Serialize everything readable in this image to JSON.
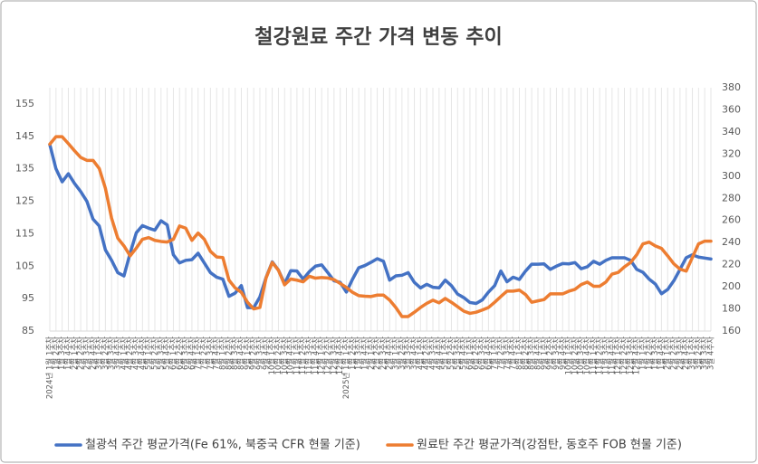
{
  "chart_data": {
    "type": "line",
    "title": "철강원료 주간 가격 변동 추이",
    "categories": [
      "2024년 1월 1주차",
      "1월 2주차",
      "1월 3주차",
      "1월 4주차",
      "2월 1주차",
      "2월 2주차",
      "2월 3주차",
      "2월 4주차",
      "3월 1주차",
      "3월 2주차",
      "3월 3주차",
      "3월 4주차",
      "4월 1주차",
      "4월 2주차",
      "4월 3주차",
      "4월 4주차",
      "5월 1주차",
      "5월 2주차",
      "5월 3주차",
      "5월 4주차",
      "6월 1주차",
      "6월 2주차",
      "6월 3주차",
      "6월 4주차",
      "7월 1주차",
      "7월 2주차",
      "7월 3주차",
      "7월 4주차",
      "8월 1주차",
      "8월 2주차",
      "8월 3주차",
      "8월 4주차",
      "9월 1주차",
      "9월 2주차",
      "9월 3주차",
      "9월 4주차",
      "10월 1주차",
      "10월 2주차",
      "10월 3주차",
      "10월 4주차",
      "11월 1주차",
      "11월 2주차",
      "11월 3주차",
      "11월 4주차",
      "12월 1주차",
      "12월 2주차",
      "12월 3주차",
      "12월 4주차",
      "2025년 1월 1주차",
      "1월 2주차",
      "1월 3주차",
      "1월 4주차",
      "2월 1주차",
      "2월 2주차",
      "2월 3주차",
      "2월 4주차",
      "3월 1주차",
      "3월 2주차",
      "3월 3주차",
      "3월 4주차",
      "4월 1주차",
      "4월 2주차",
      "4월 3주차",
      "4월 4주차",
      "5월 1주차",
      "5월 2주차",
      "5월 3주차",
      "5월 4주차",
      "6월 1주차",
      "6월 2주차",
      "6월 3주차",
      "6월 4주차",
      "7월 1주차",
      "7월 2주차",
      "7월 3주차",
      "7월 4주차",
      "8월 1주차",
      "8월 2주차",
      "8월 3주차",
      "8월 4주차",
      "9월 1주차",
      "9월 2주차",
      "9월 3주차",
      "9월 4주차",
      "10월 1주차",
      "10월 2주차",
      "10월 3주차",
      "10월 4주차",
      "11월 1주차",
      "11월 2주차",
      "11월 3주차",
      "11월 4주차",
      "12월 1주차",
      "12월 2주차",
      "12월 3주차",
      "12월 4주차",
      "1월 1주차",
      "1월 2주차",
      "1월 3주차",
      "1월 4주차",
      "2월 1주차",
      "2월 2주차",
      "2월 3주차",
      "2월 4주차",
      "3월 1주차",
      "3월 2주차",
      "3월 3주차",
      "3월 4주차"
    ],
    "series": [
      {
        "name": "철광석 주간 평균가격(Fe 61%, 북중국 CFR 현물 기준)",
        "color": "#4472c4",
        "axis": "y",
        "values": [
          142.5,
          135,
          131,
          133.5,
          130.5,
          128,
          125,
          119.5,
          117.4,
          110,
          106.8,
          103,
          102,
          109,
          115.3,
          117.5,
          116.7,
          116.1,
          119,
          117.7,
          108.5,
          106,
          106.8,
          107,
          109,
          106,
          103,
          101.6,
          101,
          95.7,
          96.7,
          99,
          92.2,
          92.2,
          95.5,
          101.5,
          106.3,
          103.8,
          99.6,
          103.6,
          103.5,
          101,
          103.3,
          105,
          105.4,
          103,
          100.5,
          100,
          97,
          101,
          104.5,
          105.2,
          106.2,
          107.3,
          106.5,
          100.7,
          102,
          102.2,
          103,
          100,
          98.3,
          99.4,
          98.5,
          98.3,
          100.7,
          99,
          96.4,
          95.3,
          93.8,
          93.5,
          94.6,
          97,
          99,
          103.5,
          100.2,
          101.6,
          100.9,
          103.5,
          105.6,
          105.6,
          105.7,
          104,
          105,
          105.8,
          105.7,
          106.1,
          104.2,
          104.8,
          106.5,
          105.6,
          106.8,
          107.6,
          107.6,
          107.6,
          106.8,
          104,
          103.1,
          101,
          99.5,
          96.5,
          97.8,
          100.5,
          104,
          107.6,
          108.5,
          107.8,
          107.5,
          107.2
        ]
      },
      {
        "name": "원료탄 주간 평균가격(강점탄, 동호주 FOB 현물 기준)",
        "color": "#ed7d31",
        "axis": "y2",
        "values": [
          329,
          335.7,
          335.7,
          329.5,
          323,
          317,
          314.3,
          314.3,
          307,
          289,
          262,
          244,
          237,
          228,
          235,
          243,
          244.5,
          242,
          241,
          240.5,
          243,
          255,
          253,
          242,
          248.6,
          243,
          232,
          227,
          226.5,
          206,
          199,
          195,
          186,
          180,
          181.3,
          208,
          222,
          215,
          201.8,
          207,
          206,
          204.5,
          209.5,
          207.8,
          208.4,
          208,
          206.5,
          203,
          199.4,
          195,
          192,
          191.5,
          191.2,
          192.5,
          192.5,
          188,
          181.3,
          173.1,
          173.1,
          177,
          181.3,
          185,
          187.9,
          185.5,
          189.5,
          186,
          182,
          178,
          176,
          177,
          179,
          181.3,
          186,
          191.2,
          196.1,
          196.1,
          197,
          193,
          186,
          187.3,
          188.5,
          193.6,
          193.6,
          193.6,
          196,
          197.7,
          202,
          204.3,
          200.5,
          200.5,
          204.3,
          211.5,
          213,
          218,
          222,
          229,
          238.8,
          240.4,
          237,
          234.7,
          228,
          220.8,
          216,
          214.2,
          226.5,
          238.8,
          241.3,
          241.3
        ]
      }
    ],
    "ylim": [
      85,
      160
    ],
    "yticks": [
      85,
      95,
      105,
      115,
      125,
      135,
      145,
      155
    ],
    "y2lim": [
      160,
      380
    ],
    "y2ticks": [
      160,
      180,
      200,
      220,
      240,
      260,
      280,
      300,
      320,
      340,
      360,
      380
    ],
    "grid": true,
    "legend": "bottom"
  }
}
